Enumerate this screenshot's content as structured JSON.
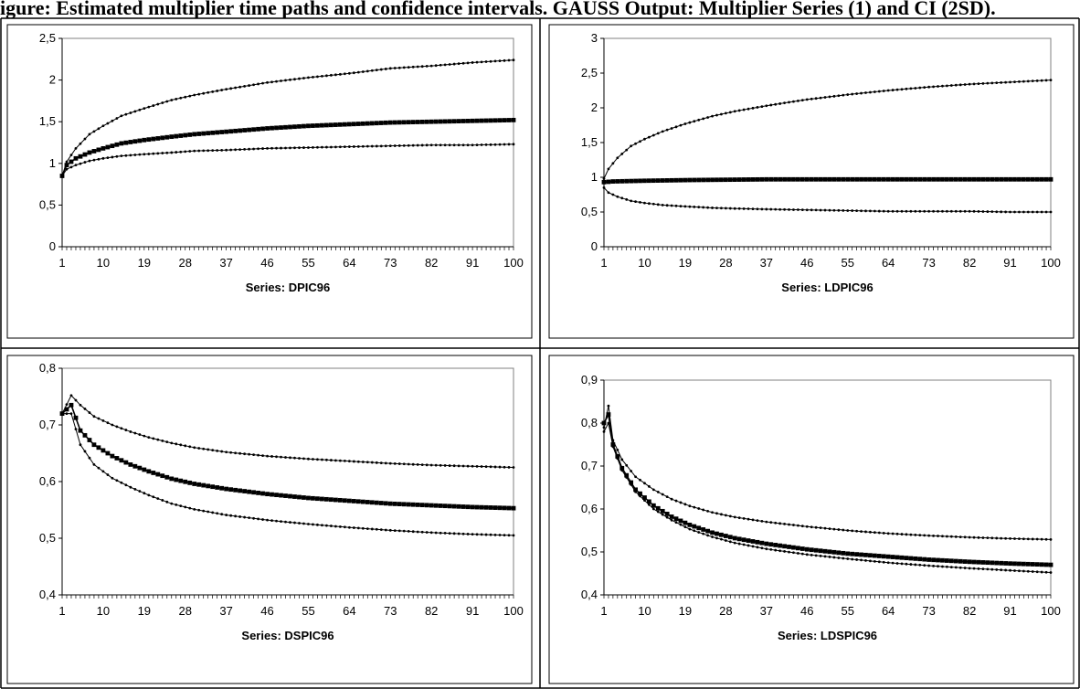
{
  "caption": "igure: Estimated multiplier time paths and confidence intervals. GAUSS Output: Multiplier Series (1) and CI (2SD).",
  "chart_data": [
    {
      "type": "line",
      "xlabel": "Series: DPIC96",
      "ylim": [
        0,
        2.5
      ],
      "yticks": [
        "0",
        "0,5",
        "1",
        "1,5",
        "2",
        "2,5"
      ],
      "xticks": [
        "1",
        "10",
        "19",
        "28",
        "37",
        "46",
        "55",
        "64",
        "73",
        "82",
        "91",
        "100"
      ],
      "x_range": [
        1,
        100
      ],
      "series": [
        {
          "role": "upper",
          "marker": "small",
          "start": 0.85,
          "points": [
            [
              1,
              0.85
            ],
            [
              2,
              1.02
            ],
            [
              4,
              1.18
            ],
            [
              7,
              1.35
            ],
            [
              10,
              1.45
            ],
            [
              14,
              1.57
            ],
            [
              19,
              1.66
            ],
            [
              25,
              1.76
            ],
            [
              30,
              1.82
            ],
            [
              37,
              1.89
            ],
            [
              46,
              1.97
            ],
            [
              55,
              2.03
            ],
            [
              64,
              2.08
            ],
            [
              73,
              2.14
            ],
            [
              82,
              2.17
            ],
            [
              91,
              2.21
            ],
            [
              100,
              2.24
            ]
          ]
        },
        {
          "role": "estimate",
          "marker": "square",
          "start": 0.85,
          "points": [
            [
              1,
              0.85
            ],
            [
              2,
              0.98
            ],
            [
              4,
              1.06
            ],
            [
              7,
              1.13
            ],
            [
              10,
              1.18
            ],
            [
              14,
              1.24
            ],
            [
              19,
              1.28
            ],
            [
              25,
              1.32
            ],
            [
              30,
              1.35
            ],
            [
              37,
              1.38
            ],
            [
              46,
              1.42
            ],
            [
              55,
              1.45
            ],
            [
              64,
              1.47
            ],
            [
              73,
              1.49
            ],
            [
              82,
              1.5
            ],
            [
              91,
              1.51
            ],
            [
              100,
              1.52
            ]
          ]
        },
        {
          "role": "lower",
          "marker": "small",
          "start": 0.85,
          "points": [
            [
              1,
              0.85
            ],
            [
              2,
              0.93
            ],
            [
              4,
              0.98
            ],
            [
              7,
              1.03
            ],
            [
              10,
              1.06
            ],
            [
              14,
              1.09
            ],
            [
              19,
              1.11
            ],
            [
              25,
              1.13
            ],
            [
              30,
              1.15
            ],
            [
              37,
              1.16
            ],
            [
              46,
              1.18
            ],
            [
              55,
              1.19
            ],
            [
              64,
              1.2
            ],
            [
              73,
              1.21
            ],
            [
              82,
              1.22
            ],
            [
              91,
              1.22
            ],
            [
              100,
              1.23
            ]
          ]
        }
      ]
    },
    {
      "type": "line",
      "xlabel": "Series: LDPIC96",
      "ylim": [
        0,
        3
      ],
      "yticks": [
        "0",
        "0,5",
        "1",
        "1,5",
        "2",
        "2,5",
        "3"
      ],
      "xticks": [
        "1",
        "10",
        "19",
        "28",
        "37",
        "46",
        "55",
        "64",
        "73",
        "82",
        "91",
        "100"
      ],
      "x_range": [
        1,
        100
      ],
      "series": [
        {
          "role": "upper",
          "marker": "small",
          "points": [
            [
              1,
              0.98
            ],
            [
              2,
              1.12
            ],
            [
              4,
              1.28
            ],
            [
              7,
              1.45
            ],
            [
              10,
              1.55
            ],
            [
              14,
              1.66
            ],
            [
              19,
              1.77
            ],
            [
              25,
              1.88
            ],
            [
              30,
              1.95
            ],
            [
              37,
              2.03
            ],
            [
              46,
              2.12
            ],
            [
              55,
              2.19
            ],
            [
              64,
              2.25
            ],
            [
              73,
              2.3
            ],
            [
              82,
              2.34
            ],
            [
              91,
              2.37
            ],
            [
              100,
              2.4
            ]
          ]
        },
        {
          "role": "estimate",
          "marker": "square",
          "points": [
            [
              1,
              0.93
            ],
            [
              3,
              0.94
            ],
            [
              10,
              0.95
            ],
            [
              20,
              0.96
            ],
            [
              37,
              0.97
            ],
            [
              55,
              0.97
            ],
            [
              73,
              0.97
            ],
            [
              100,
              0.97
            ]
          ]
        },
        {
          "role": "lower",
          "marker": "small",
          "points": [
            [
              1,
              0.85
            ],
            [
              2,
              0.78
            ],
            [
              4,
              0.72
            ],
            [
              7,
              0.66
            ],
            [
              10,
              0.63
            ],
            [
              14,
              0.6
            ],
            [
              19,
              0.58
            ],
            [
              25,
              0.56
            ],
            [
              30,
              0.55
            ],
            [
              37,
              0.54
            ],
            [
              46,
              0.53
            ],
            [
              55,
              0.52
            ],
            [
              64,
              0.51
            ],
            [
              73,
              0.51
            ],
            [
              82,
              0.51
            ],
            [
              91,
              0.5
            ],
            [
              100,
              0.5
            ]
          ]
        }
      ]
    },
    {
      "type": "line",
      "xlabel": "Series: DSPIC96",
      "ylim": [
        0.4,
        0.8
      ],
      "yticks": [
        "0,4",
        "0,5",
        "0,6",
        "0,7",
        "0,8"
      ],
      "xticks": [
        "1",
        "10",
        "19",
        "28",
        "37",
        "46",
        "55",
        "64",
        "73",
        "82",
        "91",
        "100"
      ],
      "x_range": [
        1,
        100
      ],
      "series": [
        {
          "role": "upper",
          "marker": "small",
          "points": [
            [
              1,
              0.72
            ],
            [
              3,
              0.752
            ],
            [
              5,
              0.735
            ],
            [
              8,
              0.715
            ],
            [
              12,
              0.7
            ],
            [
              16,
              0.688
            ],
            [
              20,
              0.678
            ],
            [
              25,
              0.668
            ],
            [
              30,
              0.66
            ],
            [
              37,
              0.652
            ],
            [
              46,
              0.645
            ],
            [
              55,
              0.64
            ],
            [
              64,
              0.636
            ],
            [
              73,
              0.632
            ],
            [
              82,
              0.629
            ],
            [
              91,
              0.627
            ],
            [
              100,
              0.625
            ]
          ]
        },
        {
          "role": "estimate",
          "marker": "square",
          "points": [
            [
              1,
              0.72
            ],
            [
              3,
              0.735
            ],
            [
              5,
              0.69
            ],
            [
              8,
              0.665
            ],
            [
              12,
              0.645
            ],
            [
              16,
              0.63
            ],
            [
              20,
              0.618
            ],
            [
              25,
              0.605
            ],
            [
              30,
              0.596
            ],
            [
              37,
              0.587
            ],
            [
              46,
              0.578
            ],
            [
              55,
              0.571
            ],
            [
              64,
              0.566
            ],
            [
              73,
              0.561
            ],
            [
              82,
              0.558
            ],
            [
              91,
              0.555
            ],
            [
              100,
              0.553
            ]
          ]
        },
        {
          "role": "lower",
          "marker": "small",
          "points": [
            [
              1,
              0.72
            ],
            [
              3,
              0.72
            ],
            [
              5,
              0.665
            ],
            [
              8,
              0.63
            ],
            [
              12,
              0.606
            ],
            [
              16,
              0.59
            ],
            [
              20,
              0.576
            ],
            [
              25,
              0.561
            ],
            [
              30,
              0.551
            ],
            [
              37,
              0.541
            ],
            [
              46,
              0.532
            ],
            [
              55,
              0.525
            ],
            [
              64,
              0.519
            ],
            [
              73,
              0.514
            ],
            [
              82,
              0.51
            ],
            [
              91,
              0.507
            ],
            [
              100,
              0.505
            ]
          ]
        }
      ]
    },
    {
      "type": "line",
      "xlabel": "Series: LDSPIC96",
      "ylim": [
        0.4,
        0.9
      ],
      "yticks": [
        "0,4",
        "0,5",
        "0,6",
        "0,7",
        "0,8",
        "0,9"
      ],
      "xticks": [
        "1",
        "10",
        "19",
        "28",
        "37",
        "46",
        "55",
        "64",
        "73",
        "82",
        "91",
        "100"
      ],
      "x_range": [
        1,
        100
      ],
      "series": [
        {
          "role": "upper",
          "marker": "small",
          "points": [
            [
              1,
              0.79
            ],
            [
              2,
              0.84
            ],
            [
              3,
              0.76
            ],
            [
              5,
              0.715
            ],
            [
              8,
              0.675
            ],
            [
              12,
              0.645
            ],
            [
              16,
              0.623
            ],
            [
              20,
              0.607
            ],
            [
              25,
              0.592
            ],
            [
              30,
              0.581
            ],
            [
              37,
              0.57
            ],
            [
              46,
              0.559
            ],
            [
              55,
              0.55
            ],
            [
              64,
              0.543
            ],
            [
              73,
              0.538
            ],
            [
              82,
              0.534
            ],
            [
              91,
              0.531
            ],
            [
              100,
              0.529
            ]
          ]
        },
        {
          "role": "estimate",
          "marker": "square",
          "points": [
            [
              1,
              0.8
            ],
            [
              2,
              0.82
            ],
            [
              3,
              0.75
            ],
            [
              5,
              0.695
            ],
            [
              8,
              0.645
            ],
            [
              12,
              0.608
            ],
            [
              16,
              0.582
            ],
            [
              20,
              0.563
            ],
            [
              25,
              0.545
            ],
            [
              30,
              0.532
            ],
            [
              37,
              0.519
            ],
            [
              46,
              0.506
            ],
            [
              55,
              0.496
            ],
            [
              64,
              0.489
            ],
            [
              73,
              0.482
            ],
            [
              82,
              0.477
            ],
            [
              91,
              0.473
            ],
            [
              100,
              0.47
            ]
          ]
        },
        {
          "role": "lower",
          "marker": "small",
          "points": [
            [
              1,
              0.78
            ],
            [
              2,
              0.8
            ],
            [
              3,
              0.745
            ],
            [
              5,
              0.69
            ],
            [
              8,
              0.64
            ],
            [
              12,
              0.6
            ],
            [
              16,
              0.574
            ],
            [
              20,
              0.553
            ],
            [
              25,
              0.535
            ],
            [
              30,
              0.521
            ],
            [
              37,
              0.507
            ],
            [
              46,
              0.494
            ],
            [
              55,
              0.484
            ],
            [
              64,
              0.475
            ],
            [
              73,
              0.468
            ],
            [
              82,
              0.462
            ],
            [
              91,
              0.457
            ],
            [
              100,
              0.452
            ]
          ]
        }
      ]
    }
  ]
}
